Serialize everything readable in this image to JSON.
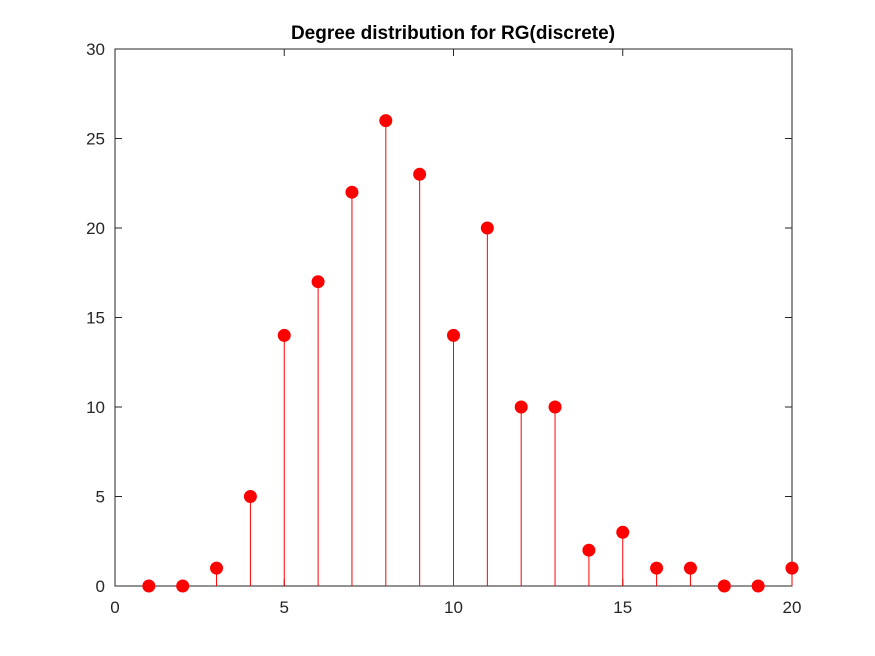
{
  "chart_data": {
    "type": "stem",
    "title": "Degree distribution for RG(discrete)",
    "xlabel": "",
    "ylabel": "",
    "xlim": [
      0,
      20
    ],
    "ylim": [
      0,
      30
    ],
    "xticks": [
      0,
      5,
      10,
      15,
      20
    ],
    "yticks": [
      0,
      5,
      10,
      15,
      20,
      25,
      30
    ],
    "grid": false,
    "box": true,
    "series": [
      {
        "x": [
          1,
          2,
          3,
          4,
          5,
          6,
          7,
          8,
          9,
          10,
          11,
          12,
          13,
          14,
          15,
          16,
          17,
          18,
          19,
          20
        ],
        "y": [
          0,
          0,
          1,
          5,
          14,
          17,
          22,
          26,
          23,
          14,
          20,
          10,
          10,
          2,
          3,
          1,
          1,
          0,
          0,
          1
        ],
        "color": "#ff0000",
        "marker": "filled-circle"
      }
    ]
  }
}
